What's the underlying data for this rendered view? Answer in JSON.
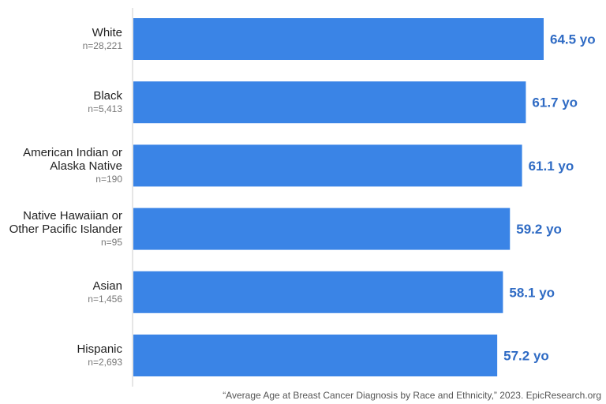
{
  "chart_data": {
    "type": "bar",
    "orientation": "horizontal",
    "categories": [
      [
        "White"
      ],
      [
        "Black"
      ],
      [
        "American Indian or",
        "Alaska Native"
      ],
      [
        "Native Hawaiian or",
        "Other Pacific Islander"
      ],
      [
        "Asian"
      ],
      [
        "Hispanic"
      ]
    ],
    "sample_sizes": [
      "n=28,221",
      "n=5,413",
      "n=190",
      "n=95",
      "n=1,456",
      "n=2,693"
    ],
    "values": [
      64.5,
      61.7,
      61.1,
      59.2,
      58.1,
      57.2
    ],
    "value_labels": [
      "64.5 yo",
      "61.7 yo",
      "61.1 yo",
      "59.2 yo",
      "58.1 yo",
      "57.2 yo"
    ],
    "title": "",
    "xlabel": "",
    "ylabel": "",
    "xlim": [
      0,
      64.5
    ],
    "grid": false,
    "bar_color": "#3a84e6",
    "label_color": "#2f6bc4"
  },
  "source_note": "“Average Age at Breast Cancer Diagnosis by Race and Ethnicity,” 2023. EpicResearch.org"
}
